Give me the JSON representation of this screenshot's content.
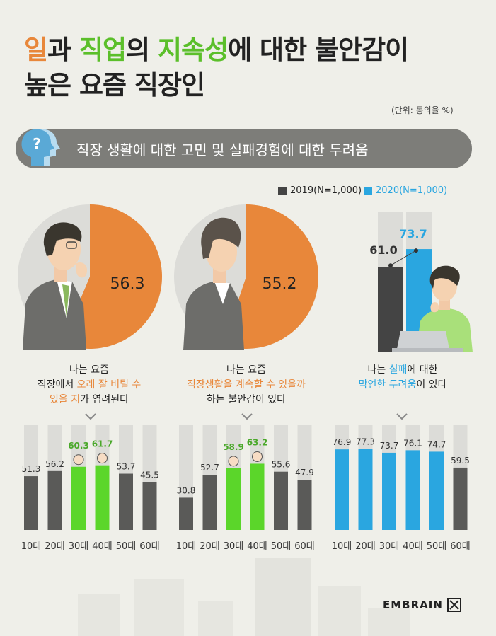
{
  "title": {
    "line1": [
      {
        "text": "일",
        "color": "orange"
      },
      {
        "text": "과 ",
        "color": "dark"
      },
      {
        "text": "직업",
        "color": "green"
      },
      {
        "text": "의 ",
        "color": "dark"
      },
      {
        "text": "지속성",
        "color": "green"
      },
      {
        "text": "에 대한 불안감이",
        "color": "dark"
      }
    ],
    "line2": "높은 요즘 직장인"
  },
  "unit": "(단위: 동의율 %)",
  "banner": "직장 생활에 대한 고민 및 실패경험에 대한 두려움",
  "legend": {
    "y2019": "2019(N=1,000)",
    "y2020": "2020(N=1,000)",
    "color2019": "#444444",
    "color2020": "#2aa6e0"
  },
  "colors": {
    "orange": "#e8873a",
    "green": "#5bd62a",
    "blue": "#2aa6e0",
    "dark": "#5a5a58",
    "track": "#dcdcd8"
  },
  "captions": {
    "c1": [
      "나는 요즘",
      "직장에서 ",
      "오래 잘 버틸 수",
      "있을 지",
      "가 염려된다"
    ],
    "c2": [
      "나는 요즘",
      "직장생활을 계속할 수 있을까",
      "하는 불안감이 있다"
    ],
    "c3": [
      "나는 ",
      "실패",
      "에 대한",
      "막연한 두려움",
      "이 있다"
    ]
  },
  "brand": "EMBRAIN",
  "chart_data": [
    {
      "type": "pie",
      "label": "나는 요즘 직장에서 오래 잘 버틸 수 있을 지가 염려된다",
      "value": 56.3,
      "value_label": "56.3"
    },
    {
      "type": "pie",
      "label": "나는 요즘 직장생활을 계속할 수 있을까 하는 불안감이 있다",
      "value": 55.2,
      "value_label": "55.2"
    },
    {
      "type": "bar",
      "label": "나는 실패에 대한 막연한 두려움이 있다",
      "series": [
        {
          "name": "2019(N=1,000)",
          "values": [
            61.0
          ],
          "labels": [
            "61.0"
          ]
        },
        {
          "name": "2020(N=1,000)",
          "values": [
            73.7
          ],
          "labels": [
            "73.7"
          ]
        }
      ],
      "ylim": [
        0,
        100
      ]
    },
    {
      "type": "bar",
      "categories": [
        "10대",
        "20대",
        "30대",
        "40대",
        "50대",
        "60대"
      ],
      "values": [
        51.3,
        56.2,
        60.3,
        61.7,
        53.7,
        45.5
      ],
      "labels": [
        "51.3",
        "56.2",
        "60.3",
        "61.7",
        "53.7",
        "45.5"
      ],
      "highlight": [
        2,
        3
      ],
      "ylim": [
        0,
        100
      ]
    },
    {
      "type": "bar",
      "categories": [
        "10대",
        "20대",
        "30대",
        "40대",
        "50대",
        "60대"
      ],
      "values": [
        30.8,
        52.7,
        58.9,
        63.2,
        55.6,
        47.9
      ],
      "labels": [
        "30.8",
        "52.7",
        "58.9",
        "63.2",
        "55.6",
        "47.9"
      ],
      "highlight": [
        2,
        3
      ],
      "ylim": [
        0,
        100
      ]
    },
    {
      "type": "bar",
      "categories": [
        "10대",
        "20대",
        "30대",
        "40대",
        "50대",
        "60대"
      ],
      "values": [
        76.9,
        77.3,
        73.7,
        76.1,
        74.7,
        59.5
      ],
      "labels": [
        "76.9",
        "77.3",
        "73.7",
        "76.1",
        "74.7",
        "59.5"
      ],
      "highlight": [
        0,
        1,
        2,
        3,
        4
      ],
      "ylim": [
        0,
        100
      ]
    }
  ]
}
